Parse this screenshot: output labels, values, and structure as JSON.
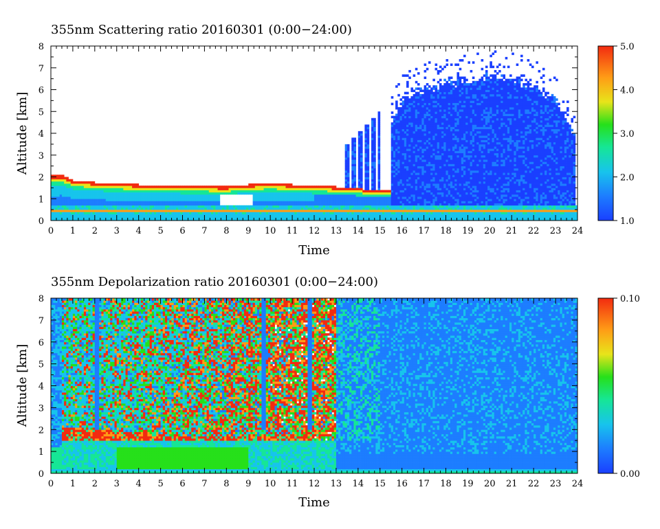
{
  "chart_data": [
    {
      "type": "heatmap",
      "title": "355nm Scattering ratio  20160301 (0:00−24:00)",
      "xlabel": "Time",
      "ylabel": "Altitude [km]",
      "xlim": [
        0,
        24
      ],
      "ylim": [
        0,
        8
      ],
      "x_ticks": [
        "0",
        "1",
        "2",
        "3",
        "4",
        "5",
        "6",
        "7",
        "8",
        "9",
        "10",
        "11",
        "12",
        "13",
        "14",
        "15",
        "16",
        "17",
        "18",
        "19",
        "20",
        "21",
        "22",
        "23",
        "24"
      ],
      "y_ticks": [
        "0",
        "1",
        "2",
        "3",
        "4",
        "5",
        "6",
        "7",
        "8"
      ],
      "colorbar": {
        "range": [
          1.0,
          5.0
        ],
        "tick_labels": [
          "5.0",
          "4.0",
          "3.0",
          "2.0",
          "1.0"
        ],
        "tick_values": [
          5.0,
          4.0,
          3.0,
          2.0,
          1.0
        ]
      },
      "color_scale": [
        "#1a3fff",
        "#1d7dff",
        "#17c4ec",
        "#16e696",
        "#26e01a",
        "#e8e41a",
        "#ff9c16",
        "#f22b10"
      ],
      "features": {
        "surface_layer_alt_km": 0.45,
        "boundary_layer_top_km": [
          [
            0,
            2.05
          ],
          [
            0.5,
            2.1
          ],
          [
            1,
            1.85
          ],
          [
            2,
            1.75
          ],
          [
            4,
            1.65
          ],
          [
            6,
            1.6
          ],
          [
            8,
            1.55
          ],
          [
            9,
            1.65
          ],
          [
            10,
            1.7
          ],
          [
            12,
            1.6
          ],
          [
            13,
            1.55
          ],
          [
            15.5,
            1.35
          ]
        ],
        "cloud_fall_streaks_hours": [
          13.5,
          13.8,
          14.1,
          14.4,
          14.7,
          14.95
        ],
        "cirrus_extent_hours": [
          15.5,
          23.9
        ],
        "cirrus_top_km": [
          [
            15.5,
            4.4
          ],
          [
            16,
            5.6
          ],
          [
            17,
            6.0
          ],
          [
            18,
            6.3
          ],
          [
            19,
            6.4
          ],
          [
            20,
            6.6
          ],
          [
            21,
            6.5
          ],
          [
            22,
            6.2
          ],
          [
            23,
            5.6
          ],
          [
            23.8,
            4.0
          ]
        ],
        "cirrus_base_km": 1.0
      }
    },
    {
      "type": "heatmap",
      "title": "355nm Depolarization ratio  20160301 (0:00−24:00)",
      "xlabel": "Time",
      "ylabel": "Altitude [km]",
      "xlim": [
        0,
        24
      ],
      "ylim": [
        0,
        8
      ],
      "x_ticks": [
        "0",
        "1",
        "2",
        "3",
        "4",
        "5",
        "6",
        "7",
        "8",
        "9",
        "10",
        "11",
        "12",
        "13",
        "14",
        "15",
        "16",
        "17",
        "18",
        "19",
        "20",
        "21",
        "22",
        "23",
        "24"
      ],
      "y_ticks": [
        "0",
        "1",
        "2",
        "3",
        "4",
        "5",
        "6",
        "7",
        "8"
      ],
      "colorbar": {
        "range": [
          0.0,
          0.1
        ],
        "tick_labels": [
          "0.10",
          "0.00"
        ],
        "tick_values": [
          0.1,
          0.0
        ]
      },
      "color_scale": [
        "#1a3fff",
        "#1d7dff",
        "#17c4ec",
        "#16e696",
        "#26e01a",
        "#e8e41a",
        "#ff9c16",
        "#f22b10"
      ],
      "features": {
        "noisy_upper_region_hours": [
          0.5,
          13.0
        ],
        "noise_boundary_km": [
          [
            0.5,
            2.1
          ],
          [
            3,
            2.0
          ],
          [
            5,
            1.65
          ],
          [
            7,
            1.7
          ],
          [
            8.5,
            1.65
          ],
          [
            9.5,
            1.75
          ],
          [
            11.5,
            1.7
          ],
          [
            12,
            1.5
          ],
          [
            13,
            1.4
          ]
        ],
        "aerosol_layer_top_km": 1.5,
        "clear_region_hours": [
          13.0,
          24.0
        ],
        "surface_layer_alt_km": 0.15
      }
    }
  ]
}
